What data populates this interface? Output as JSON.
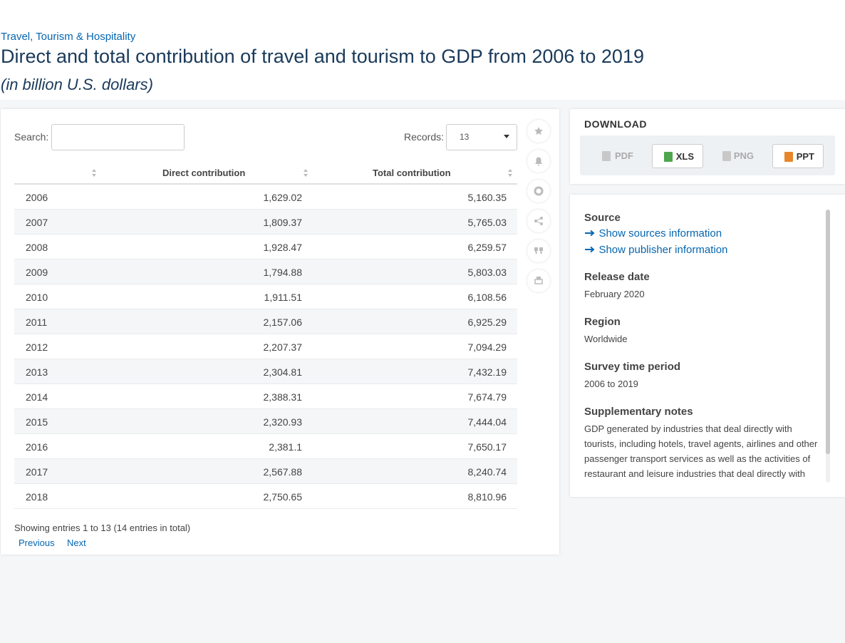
{
  "header": {
    "breadcrumb": "Travel, Tourism & Hospitality",
    "title": "Direct and total contribution of travel and tourism to GDP from 2006 to 2019",
    "subtitle": "(in billion U.S. dollars)"
  },
  "controls": {
    "search_label": "Search:",
    "records_label": "Records:",
    "records_value": "13"
  },
  "table": {
    "columns": [
      "Direct contribution",
      "Total contribution"
    ],
    "rows": [
      [
        "2006",
        "1,629.02",
        "5,160.35"
      ],
      [
        "2007",
        "1,809.37",
        "5,765.03"
      ],
      [
        "2008",
        "1,928.47",
        "6,259.57"
      ],
      [
        "2009",
        "1,794.88",
        "5,803.03"
      ],
      [
        "2010",
        "1,911.51",
        "6,108.56"
      ],
      [
        "2011",
        "2,157.06",
        "6,925.29"
      ],
      [
        "2012",
        "2,207.37",
        "7,094.29"
      ],
      [
        "2013",
        "2,304.81",
        "7,432.19"
      ],
      [
        "2014",
        "2,388.31",
        "7,674.79"
      ],
      [
        "2015",
        "2,320.93",
        "7,444.04"
      ],
      [
        "2016",
        "2,381.1",
        "7,650.17"
      ],
      [
        "2017",
        "2,567.88",
        "8,240.74"
      ],
      [
        "2018",
        "2,750.65",
        "8,810.96"
      ]
    ],
    "footer": "Showing entries 1 to 13 (14 entries in total)",
    "previous": "Previous",
    "next": "Next"
  },
  "download": {
    "title": "DOWNLOAD",
    "buttons": [
      "PDF",
      "XLS",
      "PNG",
      "PPT"
    ]
  },
  "info": {
    "source_title": "Source",
    "links": [
      "Show sources information",
      "Show publisher information"
    ],
    "sections": [
      {
        "title": "Release date",
        "text": "February 2020"
      },
      {
        "title": "Region",
        "text": "Worldwide"
      },
      {
        "title": "Survey time period",
        "text": "2006 to 2019"
      },
      {
        "title": "Supplementary notes",
        "text": "GDP generated by industries that deal directly with tourists, including hotels, travel agents, airlines and other passenger transport services as well as the activities of restaurant and leisure industries that deal directly with tourists."
      }
    ]
  }
}
